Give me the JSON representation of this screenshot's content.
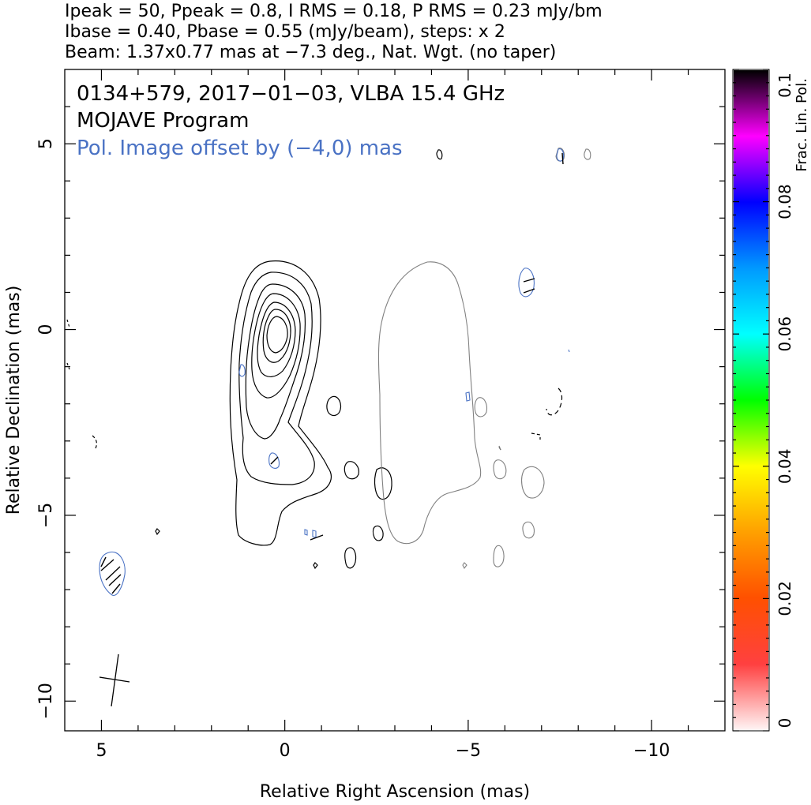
{
  "header": {
    "line1": "Ipeak = 50, Ppeak = 0.8, I RMS = 0.18, P RMS = 0.23 mJy/bm",
    "line2": "Ibase = 0.40, Pbase = 0.55 (mJy/beam), steps: x 2",
    "line3": "Beam: 1.37x0.77 mas at −7.3 deg., Nat. Wgt. (no taper)"
  },
  "annotations": {
    "source": "0134+579, 2017−01−03, VLBA 15.4 GHz",
    "program": "MOJAVE Program",
    "pol_offset": "Pol. Image offset by (−4,0) mas"
  },
  "colors": {
    "total_intensity_contours": "#000000",
    "polarization_contours": "#4a72c4",
    "offset_intensity_contours": "#808080"
  },
  "chart_data": {
    "type": "contour",
    "xlabel": "Relative Right Ascension (mas)",
    "ylabel": "Relative Declination (mas)",
    "xlim": [
      6,
      -12
    ],
    "ylim": [
      -10.8,
      7
    ],
    "x_ticks": [
      {
        "v": 5,
        "label": "5"
      },
      {
        "v": 0,
        "label": "0"
      },
      {
        "v": -5,
        "label": "−5"
      },
      {
        "v": -10,
        "label": "−10"
      }
    ],
    "y_ticks": [
      {
        "v": 5,
        "label": "5"
      },
      {
        "v": 0,
        "label": "0"
      },
      {
        "v": -5,
        "label": "−5"
      },
      {
        "v": -10,
        "label": "−10"
      }
    ],
    "beam": {
      "major_mas": 1.37,
      "minor_mas": 0.77,
      "pa_deg": -7.3,
      "center": [
        4.5,
        -9.5
      ]
    },
    "pol_image_offset_mas": [
      -4,
      0
    ],
    "core": {
      "x": 0,
      "y": 0
    },
    "contour_levels_mjy_per_beam": [
      0.4,
      0.8,
      1.6,
      3.2,
      6.4,
      12.8,
      25.6
    ],
    "colorbar": {
      "label": "Frac. Lin. Pol.",
      "range": [
        0,
        0.1
      ],
      "ticks": [
        {
          "v": 0,
          "label": "0"
        },
        {
          "v": 0.02,
          "label": "0.02"
        },
        {
          "v": 0.04,
          "label": "0.04"
        },
        {
          "v": 0.06,
          "label": "0.06"
        },
        {
          "v": 0.08,
          "label": "0.08"
        },
        {
          "v": 0.1,
          "label": "0.1"
        }
      ]
    }
  }
}
